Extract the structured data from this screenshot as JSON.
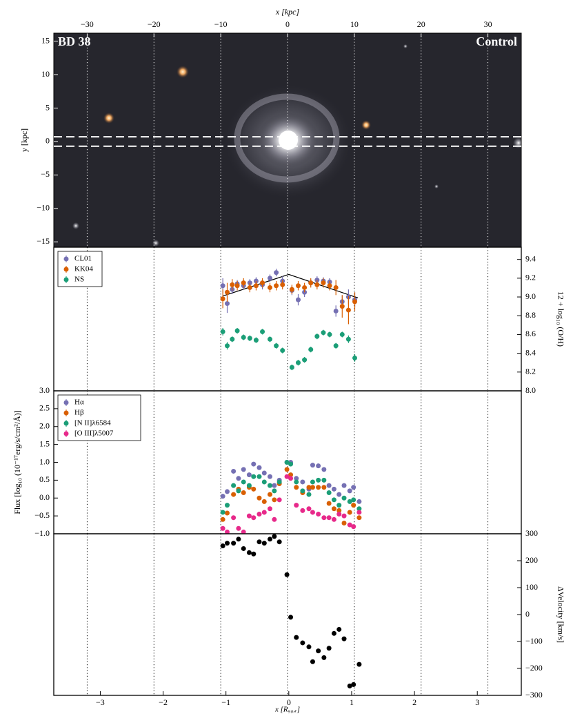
{
  "chart_data": [
    {
      "type": "image",
      "name_label": "BD 38",
      "sample_label": "Control",
      "xlabel": "x [kpc]",
      "ylabel": "y [kpc]",
      "xlim": [
        -35,
        35
      ],
      "xticks": [
        {
          "value": -30,
          "label": "−30"
        },
        {
          "value": -20,
          "label": "−20"
        },
        {
          "value": -10,
          "label": "−10"
        },
        0,
        10,
        20,
        30
      ],
      "ylim": [
        -15.8,
        16.2
      ],
      "yticks": [
        15,
        10,
        5,
        0,
        {
          "value": -5,
          "label": "−5"
        },
        {
          "value": -10,
          "label": "−10"
        },
        {
          "value": -15,
          "label": "−15"
        }
      ],
      "slit": [
        -0.7,
        0.7
      ]
    },
    {
      "type": "scatter",
      "ylabel": "12 + log₁₀ (O/H)",
      "legend": "upper left",
      "x": [
        -1.05,
        -0.98,
        -0.9,
        -0.82,
        -0.72,
        -0.62,
        -0.52,
        -0.42,
        -0.3,
        -0.2,
        -0.1,
        0.05,
        0.15,
        0.25,
        0.35,
        0.45,
        0.55,
        0.65,
        0.75,
        0.85,
        0.95,
        1.05
      ],
      "series": [
        {
          "name": "CL01",
          "color": "#7570b3",
          "values": [
            9.12,
            8.93,
            9.08,
            9.14,
            9.12,
            9.15,
            9.17,
            9.13,
            9.2,
            9.26,
            9.17,
            9.07,
            8.97,
            9.05,
            9.15,
            9.18,
            9.17,
            9.16,
            8.85,
            8.95,
            9.0,
            8.97
          ],
          "errors": [
            0.08,
            0.1,
            0.05,
            0.04,
            0.04,
            0.04,
            0.04,
            0.05,
            0.04,
            0.04,
            0.05,
            0.05,
            0.06,
            0.05,
            0.04,
            0.04,
            0.04,
            0.04,
            0.06,
            0.07,
            0.08,
            0.08
          ]
        },
        {
          "name": "KK04",
          "color": "#d95f02",
          "values": [
            8.98,
            9.05,
            9.13,
            9.12,
            9.15,
            9.1,
            9.12,
            9.15,
            9.1,
            9.12,
            9.13,
            9.08,
            9.12,
            9.1,
            9.15,
            9.13,
            9.15,
            9.12,
            9.1,
            8.9,
            8.86,
            8.95
          ],
          "errors": [
            0.1,
            0.1,
            0.06,
            0.05,
            0.05,
            0.05,
            0.05,
            0.05,
            0.05,
            0.05,
            0.05,
            0.05,
            0.05,
            0.05,
            0.05,
            0.05,
            0.05,
            0.05,
            0.08,
            0.12,
            0.15,
            0.1
          ]
        },
        {
          "name": "NS",
          "color": "#1b9e77",
          "values": [
            8.63,
            8.48,
            8.55,
            8.64,
            8.57,
            8.56,
            8.54,
            8.63,
            8.55,
            8.48,
            8.43,
            8.25,
            8.3,
            8.33,
            8.44,
            8.58,
            8.62,
            8.6,
            8.48,
            8.6,
            8.55,
            8.35
          ],
          "errors": [
            0.04,
            0.04,
            0.03,
            0.03,
            0.03,
            0.03,
            0.03,
            0.03,
            0.03,
            0.03,
            0.03,
            0.03,
            0.03,
            0.03,
            0.03,
            0.03,
            0.03,
            0.03,
            0.03,
            0.03,
            0.04,
            0.04
          ]
        }
      ],
      "fit": {
        "x": [
          -1.05,
          0,
          1.1
        ],
        "values": [
          9.01,
          9.24,
          8.99
        ]
      },
      "ylim": [
        8.0,
        9.53
      ],
      "yticks": [
        {
          "value": 8.0,
          "label": "8.0"
        },
        8.2,
        8.4,
        8.6,
        8.8,
        {
          "value": 9.0,
          "label": "9.0"
        },
        9.2,
        9.4
      ]
    },
    {
      "type": "scatter",
      "ylabel": "Flux [log₁₀ (10⁻¹⁷erg/s/cm²/Å)]",
      "legend": "upper left",
      "x": [
        -1.05,
        -0.98,
        -0.88,
        -0.8,
        -0.72,
        -0.63,
        -0.56,
        -0.47,
        -0.39,
        -0.3,
        -0.23,
        -0.15,
        -0.03,
        0.03,
        0.12,
        0.22,
        0.32,
        0.38,
        0.47,
        0.56,
        0.64,
        0.72,
        0.8,
        0.88,
        0.97,
        1.03,
        1.12
      ],
      "series": [
        {
          "name": "Hα",
          "color": "#7570b3",
          "values": [
            0.05,
            0.18,
            0.75,
            0.55,
            0.8,
            0.65,
            0.95,
            0.85,
            0.7,
            0.6,
            0.35,
            0.5,
            1.0,
            1.0,
            0.55,
            0.45,
            0.25,
            0.92,
            0.9,
            0.8,
            0.35,
            0.25,
            0.1,
            0.35,
            0.2,
            0.3,
            -0.1
          ]
        },
        {
          "name": "Hβ",
          "color": "#d95f02",
          "values": [
            -0.6,
            -0.42,
            0.1,
            0.25,
            0.15,
            0.3,
            0.25,
            0.0,
            -0.1,
            0.1,
            -0.05,
            0.4,
            0.8,
            0.65,
            0.3,
            0.15,
            0.3,
            0.3,
            0.3,
            0.3,
            -0.15,
            -0.3,
            -0.35,
            -0.7,
            -0.4,
            -0.2,
            -0.55
          ]
        },
        {
          "name": "[N II]λ6584",
          "color": "#1b9e77",
          "values": [
            -0.4,
            -0.2,
            0.35,
            0.2,
            0.45,
            0.35,
            0.6,
            0.6,
            0.45,
            0.35,
            0.2,
            0.45,
            1.0,
            0.95,
            0.45,
            0.2,
            0.1,
            0.45,
            0.5,
            0.5,
            0.15,
            -0.05,
            -0.2,
            0.0,
            -0.1,
            -0.05,
            -0.3
          ]
        },
        {
          "name": "[O III]λ5007",
          "color": "#e7298a",
          "values": [
            -0.85,
            -0.95,
            -0.55,
            -0.85,
            -0.95,
            -0.5,
            -0.55,
            -0.45,
            -0.4,
            -0.3,
            -0.6,
            -0.05,
            0.6,
            0.55,
            -0.2,
            -0.35,
            -0.3,
            -0.4,
            -0.45,
            -0.55,
            -0.55,
            -0.6,
            -0.45,
            -0.5,
            -0.75,
            -0.8,
            -0.4
          ]
        }
      ],
      "ylim": [
        -1.0,
        3.0
      ],
      "yticks": [
        {
          "value": -1.0,
          "label": "−1.0"
        },
        {
          "value": -0.5,
          "label": "−0.5"
        },
        {
          "value": 0.0,
          "label": "0.0"
        },
        0.5,
        {
          "value": 1.0,
          "label": "1.0"
        },
        1.5,
        {
          "value": 2.0,
          "label": "2.0"
        },
        2.5,
        {
          "value": 3.0,
          "label": "3.0"
        }
      ]
    },
    {
      "type": "scatter",
      "ylabel": "ΔVelocity [km/s]",
      "xlabel": "x [R₉₀,ᵣ]",
      "color": "#000000",
      "x": [
        -1.05,
        -0.98,
        -0.88,
        -0.8,
        -0.72,
        -0.63,
        -0.56,
        -0.47,
        -0.39,
        -0.3,
        -0.23,
        -0.15,
        -0.03,
        0.03,
        0.12,
        0.22,
        0.32,
        0.38,
        0.47,
        0.56,
        0.64,
        0.72,
        0.8,
        0.88,
        0.97,
        1.03,
        1.12
      ],
      "values": [
        255,
        265,
        265,
        280,
        245,
        230,
        225,
        270,
        265,
        280,
        290,
        270,
        148,
        -10,
        -85,
        -105,
        -120,
        -175,
        -135,
        -160,
        -125,
        -70,
        -55,
        -90,
        -265,
        -260,
        -185
      ],
      "xlim": [
        -3.74,
        3.7
      ],
      "xticks": [
        {
          "value": -3,
          "label": "−3"
        },
        {
          "value": -2,
          "label": "−2"
        },
        {
          "value": -1,
          "label": "−1"
        },
        0,
        1,
        2,
        3
      ],
      "ylim": [
        -300,
        300
      ],
      "yticks": [
        {
          "value": -300,
          "label": "−300"
        },
        {
          "value": -200,
          "label": "−200"
        },
        {
          "value": -100,
          "label": "−100"
        },
        0,
        100,
        200,
        300
      ]
    }
  ]
}
